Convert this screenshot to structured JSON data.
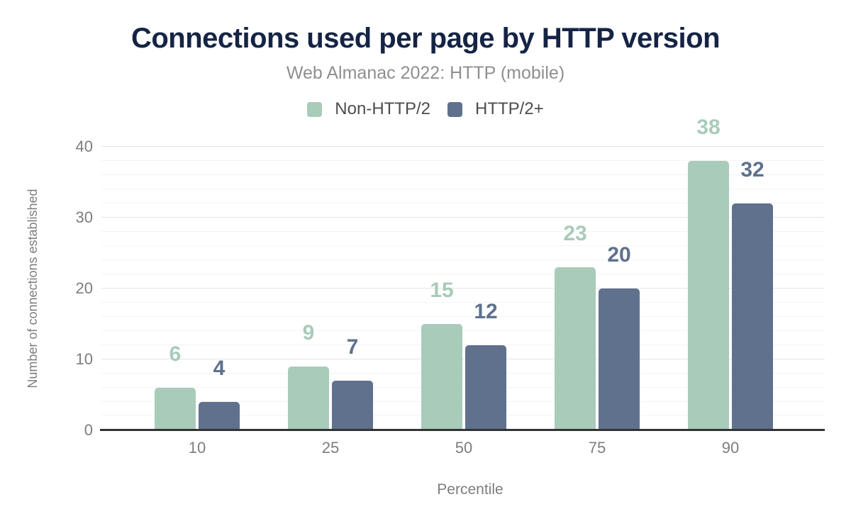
{
  "header": {
    "title": "Connections used per page by HTTP version",
    "subtitle": "Web Almanac 2022: HTTP (mobile)"
  },
  "chart_data": {
    "type": "bar",
    "title": "Connections used per page by HTTP version",
    "subtitle": "Web Almanac 2022: HTTP (mobile)",
    "categories": [
      "10",
      "25",
      "50",
      "75",
      "90"
    ],
    "series": [
      {
        "name": "Non-HTTP/2",
        "color": "#a9cbba",
        "values": [
          6,
          9,
          15,
          23,
          38
        ]
      },
      {
        "name": "HTTP/2+",
        "color": "#5f718d",
        "values": [
          4,
          7,
          12,
          20,
          32
        ]
      }
    ],
    "xlabel": "Percentile",
    "ylabel": "Number of connections established",
    "ylim": [
      0,
      40
    ],
    "yticks": [
      0,
      10,
      20,
      30,
      40
    ],
    "minor_grid_step": 2,
    "grid": true,
    "legend_position": "top",
    "value_labels": true
  },
  "colors": {
    "title": "#152445",
    "subtitle": "#8f8f8f",
    "legend_text": "#4d4d4d",
    "axis_text": "#7d7d7d",
    "axis_line": "#333333",
    "major_grid": "#e5e5e5",
    "minor_grid": "#f4f4f4",
    "background": "#ffffff"
  }
}
